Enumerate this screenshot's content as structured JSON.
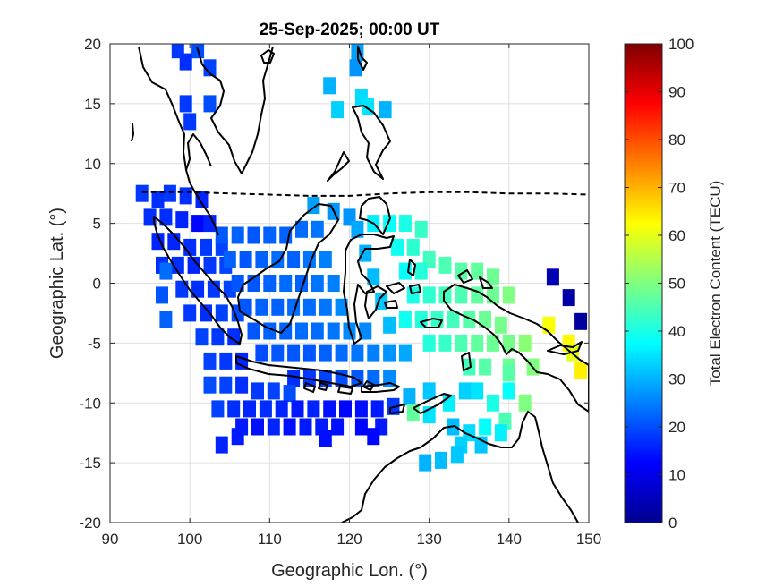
{
  "chart_data": {
    "type": "heatmap",
    "title": "25-Sep-2025; 00:00 UT",
    "xlabel": "Geographic Lon. (°)",
    "ylabel": "Geographic Lat. (°)",
    "xlim": [
      90,
      150
    ],
    "ylim": [
      -20,
      20
    ],
    "xticks": [
      90,
      100,
      110,
      120,
      130,
      140,
      150
    ],
    "yticks": [
      -20,
      -15,
      -10,
      -5,
      0,
      5,
      10,
      15,
      20
    ],
    "grid": true,
    "colorbar": {
      "label": "Total Electron Content (TECU)",
      "range": [
        0,
        100
      ],
      "ticks": [
        0,
        10,
        20,
        30,
        40,
        50,
        60,
        70,
        80,
        90,
        100
      ],
      "colormap": "jet"
    },
    "geomagnetic_equator": [
      [
        94,
        7.6
      ],
      [
        100,
        7.6
      ],
      [
        105,
        7.5
      ],
      [
        110,
        7.4
      ],
      [
        115,
        7.3
      ],
      [
        120,
        7.3
      ],
      [
        125,
        7.5
      ],
      [
        130,
        7.6
      ],
      [
        135,
        7.6
      ],
      [
        140,
        7.5
      ],
      [
        145,
        7.5
      ],
      [
        150,
        7.4
      ]
    ],
    "tec_cells": [
      [
        98.5,
        19.5,
        18
      ],
      [
        101,
        19.5,
        20
      ],
      [
        99.5,
        18.5,
        17
      ],
      [
        102.5,
        18,
        19
      ],
      [
        99.5,
        15,
        18
      ],
      [
        102.5,
        15,
        20
      ],
      [
        100,
        13.5,
        18
      ],
      [
        121,
        19.3,
        28
      ],
      [
        120.8,
        18,
        27
      ],
      [
        117.5,
        16.5,
        30
      ],
      [
        121.5,
        15.5,
        34
      ],
      [
        118.5,
        14.5,
        33
      ],
      [
        122.3,
        14.8,
        35
      ],
      [
        124.5,
        14.5,
        30
      ],
      [
        94,
        7.5,
        18
      ],
      [
        96,
        7,
        17
      ],
      [
        97.5,
        7.5,
        18
      ],
      [
        99.5,
        7.3,
        17
      ],
      [
        101.5,
        7,
        16
      ],
      [
        95,
        5.5,
        17
      ],
      [
        97,
        5.5,
        17
      ],
      [
        99,
        5.3,
        16
      ],
      [
        101,
        5,
        13
      ],
      [
        102.5,
        5,
        16
      ],
      [
        96,
        3.5,
        16
      ],
      [
        98,
        3.5,
        16
      ],
      [
        100,
        3,
        17
      ],
      [
        102,
        3,
        18
      ],
      [
        104,
        3,
        19
      ],
      [
        96.5,
        1.5,
        17
      ],
      [
        98.5,
        1.5,
        17
      ],
      [
        100.5,
        1.5,
        16
      ],
      [
        102.5,
        1.5,
        18
      ],
      [
        104.5,
        1.5,
        19
      ],
      [
        99,
        -0.5,
        18
      ],
      [
        101,
        -0.5,
        17
      ],
      [
        103,
        -0.5,
        18
      ],
      [
        105,
        -0.5,
        19
      ],
      [
        100,
        -2.5,
        18
      ],
      [
        102,
        -2.5,
        17
      ],
      [
        104,
        -2.5,
        19
      ],
      [
        106,
        -2.5,
        20
      ],
      [
        101.5,
        -4.5,
        19
      ],
      [
        103.5,
        -4.5,
        18
      ],
      [
        105.5,
        -4.5,
        17
      ],
      [
        102.5,
        -6.5,
        19
      ],
      [
        104.5,
        -6.5,
        18
      ],
      [
        106.5,
        -6.5,
        16
      ],
      [
        97,
        -3,
        22
      ],
      [
        96.5,
        -1,
        21
      ],
      [
        97,
        1,
        23
      ],
      [
        104,
        4,
        21
      ],
      [
        106,
        4,
        22
      ],
      [
        108,
        4,
        21
      ],
      [
        110,
        4,
        22
      ],
      [
        112,
        4,
        22
      ],
      [
        114,
        4.5,
        23
      ],
      [
        116,
        4.5,
        24
      ],
      [
        105,
        2,
        22
      ],
      [
        107,
        2,
        21
      ],
      [
        109,
        2,
        22
      ],
      [
        111,
        2,
        23
      ],
      [
        113,
        2,
        22
      ],
      [
        115,
        2,
        24
      ],
      [
        117,
        2,
        25
      ],
      [
        106,
        0,
        21
      ],
      [
        108,
        0,
        21
      ],
      [
        110,
        0,
        22
      ],
      [
        112,
        0,
        23
      ],
      [
        114,
        0,
        22
      ],
      [
        116,
        0,
        24
      ],
      [
        118,
        0,
        25
      ],
      [
        107,
        -2,
        21
      ],
      [
        109,
        -2,
        22
      ],
      [
        111,
        -2,
        22
      ],
      [
        113,
        -2,
        23
      ],
      [
        115,
        -2,
        23
      ],
      [
        117,
        -2,
        24
      ],
      [
        119,
        -2,
        26
      ],
      [
        108,
        -4,
        21
      ],
      [
        110,
        -4,
        22
      ],
      [
        112,
        -4,
        22
      ],
      [
        114,
        -4,
        23
      ],
      [
        116,
        -4,
        23
      ],
      [
        118,
        -4,
        24
      ],
      [
        120,
        -4,
        26
      ],
      [
        109,
        -5.8,
        20
      ],
      [
        111,
        -5.8,
        21
      ],
      [
        113,
        -5.8,
        21
      ],
      [
        115,
        -5.8,
        21
      ],
      [
        117,
        -5.8,
        22
      ],
      [
        119,
        -5.8,
        23
      ],
      [
        121,
        -5.8,
        24
      ],
      [
        123,
        -5.8,
        25
      ],
      [
        125,
        -5.8,
        27
      ],
      [
        127,
        -5.8,
        29
      ],
      [
        115.5,
        6.5,
        28
      ],
      [
        118,
        6,
        27
      ],
      [
        120,
        5.5,
        27
      ],
      [
        121,
        4.5,
        29
      ],
      [
        122,
        2.5,
        30
      ],
      [
        123,
        0.5,
        31
      ],
      [
        124,
        -1.5,
        32
      ],
      [
        125,
        -3.5,
        31
      ],
      [
        122,
        -4,
        26
      ],
      [
        123,
        5,
        36
      ],
      [
        125,
        5,
        38
      ],
      [
        127,
        5,
        40
      ],
      [
        129,
        4.5,
        43
      ],
      [
        126,
        3,
        39
      ],
      [
        128,
        3,
        42
      ],
      [
        130,
        2,
        44
      ],
      [
        132,
        1.5,
        45
      ],
      [
        134,
        1,
        46
      ],
      [
        136,
        1,
        47
      ],
      [
        138,
        0.5,
        48
      ],
      [
        127,
        1,
        38
      ],
      [
        129,
        1,
        41
      ],
      [
        128,
        -1,
        40
      ],
      [
        130,
        -1,
        42
      ],
      [
        132,
        -1,
        44
      ],
      [
        134,
        -1,
        45
      ],
      [
        136,
        -1,
        47
      ],
      [
        138,
        -1,
        48
      ],
      [
        140,
        -1,
        50
      ],
      [
        127,
        -3,
        39
      ],
      [
        129,
        -3,
        41
      ],
      [
        131,
        -3,
        43
      ],
      [
        133,
        -3,
        44
      ],
      [
        135,
        -3,
        46
      ],
      [
        137,
        -3,
        48
      ],
      [
        139,
        -3.5,
        49
      ],
      [
        130,
        -5,
        41
      ],
      [
        132,
        -5,
        43
      ],
      [
        134,
        -5,
        45
      ],
      [
        136,
        -5,
        47
      ],
      [
        138,
        -5,
        48
      ],
      [
        140,
        -5,
        49
      ],
      [
        142,
        -5,
        51
      ],
      [
        135,
        -7,
        44
      ],
      [
        137,
        -7,
        46
      ],
      [
        140,
        -7,
        48
      ],
      [
        143,
        -7,
        50
      ],
      [
        113,
        -8,
        17
      ],
      [
        115,
        -8,
        18
      ],
      [
        117,
        -8,
        19
      ],
      [
        119,
        -8,
        20
      ],
      [
        121,
        -8,
        21
      ],
      [
        123,
        -8,
        23
      ],
      [
        125,
        -8,
        26
      ],
      [
        102.5,
        -8.5,
        20
      ],
      [
        104.5,
        -8.5,
        19
      ],
      [
        106.5,
        -8.5,
        17
      ],
      [
        108.5,
        -9,
        18
      ],
      [
        110.5,
        -9,
        19
      ],
      [
        112.5,
        -9.2,
        20
      ],
      [
        103.5,
        -10.5,
        19
      ],
      [
        105.5,
        -10.5,
        17
      ],
      [
        107.5,
        -10.5,
        16
      ],
      [
        109.5,
        -10.5,
        17
      ],
      [
        111.5,
        -10.5,
        16
      ],
      [
        113.5,
        -10.5,
        15
      ],
      [
        115.5,
        -10.5,
        16
      ],
      [
        117.5,
        -10.5,
        14
      ],
      [
        119.5,
        -10.5,
        13
      ],
      [
        121.5,
        -10.5,
        14
      ],
      [
        123.5,
        -10.5,
        15
      ],
      [
        125.5,
        -10.3,
        18
      ],
      [
        106.5,
        -12,
        15
      ],
      [
        108.5,
        -12,
        14
      ],
      [
        110.5,
        -12,
        16
      ],
      [
        112.5,
        -12,
        14
      ],
      [
        114.5,
        -12,
        15
      ],
      [
        116.5,
        -12,
        15
      ],
      [
        118.5,
        -12,
        14
      ],
      [
        121.5,
        -12,
        13
      ],
      [
        124,
        -12,
        15
      ],
      [
        104,
        -13.5,
        16
      ],
      [
        106,
        -12.8,
        15
      ],
      [
        117,
        -13,
        14
      ],
      [
        123,
        -12.8,
        13
      ],
      [
        127.5,
        -9.5,
        30
      ],
      [
        130,
        -9,
        32
      ],
      [
        132.5,
        -10,
        36
      ],
      [
        134.5,
        -9,
        33
      ],
      [
        136,
        -9,
        35
      ],
      [
        138,
        -10,
        40
      ],
      [
        140,
        -9,
        38
      ],
      [
        128,
        -10.8,
        47
      ],
      [
        130,
        -11,
        35
      ],
      [
        133,
        -12,
        31
      ],
      [
        135,
        -12.5,
        34
      ],
      [
        137,
        -12,
        38
      ],
      [
        139.5,
        -11.5,
        45
      ],
      [
        142,
        -10,
        50
      ],
      [
        134,
        -13.5,
        33
      ],
      [
        136.5,
        -13.5,
        32
      ],
      [
        139,
        -12.5,
        36
      ],
      [
        129.5,
        -15,
        30
      ],
      [
        131.5,
        -14.8,
        31
      ],
      [
        133.5,
        -14.3,
        32
      ],
      [
        140,
        -7.5,
        46
      ],
      [
        145.5,
        0.5,
        5
      ],
      [
        147.5,
        -1.2,
        4
      ],
      [
        149,
        -3.2,
        3
      ],
      [
        145,
        -3.5,
        62
      ],
      [
        147.5,
        -5,
        63
      ],
      [
        148,
        -5.8,
        60
      ],
      [
        149,
        -7.3,
        64
      ]
    ]
  }
}
